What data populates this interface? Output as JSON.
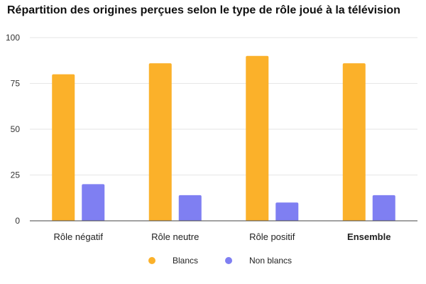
{
  "chart_data": {
    "type": "bar",
    "title": "Répartition des origines perçues selon le type de rôle joué à la télévision",
    "categories": [
      "Rôle négatif",
      "Rôle neutre",
      "Rôle positif",
      "Ensemble"
    ],
    "series": [
      {
        "name": "Blancs",
        "values": [
          80,
          86,
          90,
          86
        ],
        "color": "#fbb12a"
      },
      {
        "name": "Non blancs",
        "values": [
          20,
          14,
          10,
          14
        ],
        "color": "#7f7ff2"
      }
    ],
    "yticks": [
      0,
      25,
      50,
      75,
      100
    ],
    "ylim": [
      0,
      100
    ],
    "xlabel": "",
    "ylabel": "",
    "grid": true,
    "legend_position": "bottom",
    "bold_category": "Ensemble"
  }
}
